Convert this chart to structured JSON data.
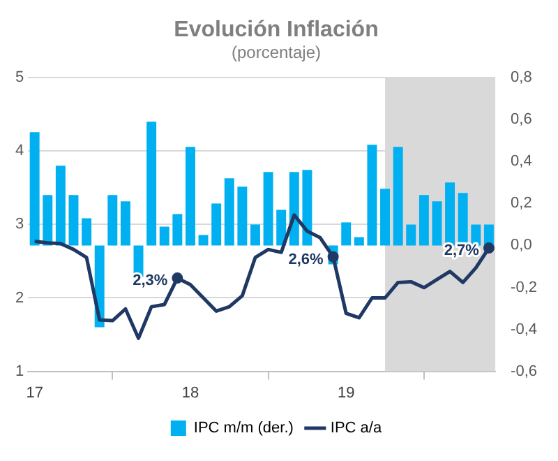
{
  "chart_data": {
    "type": "bar",
    "title": "Evolución Inflación",
    "subtitle": "(porcentaje)",
    "x": [
      "2017-01",
      "2017-02",
      "2017-03",
      "2017-04",
      "2017-05",
      "2017-06",
      "2017-07",
      "2017-08",
      "2017-09",
      "2017-10",
      "2017-11",
      "2017-12",
      "2018-01",
      "2018-02",
      "2018-03",
      "2018-04",
      "2018-05",
      "2018-06",
      "2018-07",
      "2018-08",
      "2018-09",
      "2018-10",
      "2018-11",
      "2018-12",
      "2019-01",
      "2019-02",
      "2019-03",
      "2019-04",
      "2019-05",
      "2019-06",
      "2019-07",
      "2019-08",
      "2019-09",
      "2019-10",
      "2019-11",
      "2019-12"
    ],
    "series": [
      {
        "name": "IPC m/m (der.)",
        "axis": "y2",
        "color": "#00b0f0",
        "values": [
          0.54,
          0.24,
          0.38,
          0.24,
          0.13,
          -0.39,
          0.24,
          0.21,
          -0.15,
          0.59,
          0.09,
          0.15,
          0.47,
          0.05,
          0.2,
          0.32,
          0.28,
          0.1,
          0.35,
          0.17,
          0.35,
          0.36,
          null,
          -0.09,
          0.11,
          0.04,
          0.48,
          0.27,
          0.47,
          0.1,
          0.24,
          0.21,
          0.3,
          0.25,
          0.1,
          0.1
        ]
      },
      {
        "name": "IPC a/a",
        "type": "line",
        "axis": "y",
        "color": "#1f3864",
        "values": [
          2.77,
          2.75,
          2.74,
          2.66,
          2.55,
          1.7,
          1.69,
          1.85,
          1.45,
          1.88,
          1.91,
          2.27,
          2.18,
          2.0,
          1.82,
          1.88,
          2.03,
          2.55,
          2.66,
          2.62,
          3.13,
          2.91,
          2.82,
          2.56,
          1.79,
          1.73,
          2.0,
          2.0,
          2.21,
          2.22,
          2.14,
          2.25,
          2.36,
          2.21,
          2.41,
          2.68
        ]
      }
    ],
    "xlim": [
      "2016-12-16",
      "2019-12-16"
    ],
    "xticks": [
      {
        "value": "2017-01",
        "label": "17"
      },
      {
        "value": "2018-01",
        "label": "18"
      },
      {
        "value": "2019-01",
        "label": "19"
      }
    ],
    "ylim": [
      1,
      5
    ],
    "yticks": [
      1,
      2,
      3,
      4,
      5
    ],
    "y2lim": [
      -0.6,
      0.8
    ],
    "y2ticks": [
      {
        "value": -0.6,
        "label": "-0,6"
      },
      {
        "value": -0.4,
        "label": "-0,4"
      },
      {
        "value": -0.2,
        "label": "-0,2"
      },
      {
        "value": 0,
        "label": "0,0"
      },
      {
        "value": 0.2,
        "label": "0,2"
      },
      {
        "value": 0.4,
        "label": "0,4"
      },
      {
        "value": 0.6,
        "label": "0,6"
      },
      {
        "value": 0.8,
        "label": "0,8"
      }
    ],
    "bands": [
      {
        "axis": "x",
        "from": "2019-04",
        "to": "2019-12-16",
        "color": "#d9d9d9"
      }
    ],
    "annotations": [
      {
        "text": "2,3%",
        "x": "2017-12",
        "y": 2.27
      },
      {
        "text": "2,6%",
        "x": "2018-12",
        "y": 2.56
      },
      {
        "text": "2,7%",
        "x": "2019-12",
        "y": 2.68
      }
    ],
    "grid": "y",
    "legend": "bottom",
    "marker": "none",
    "line_style": "solid"
  }
}
